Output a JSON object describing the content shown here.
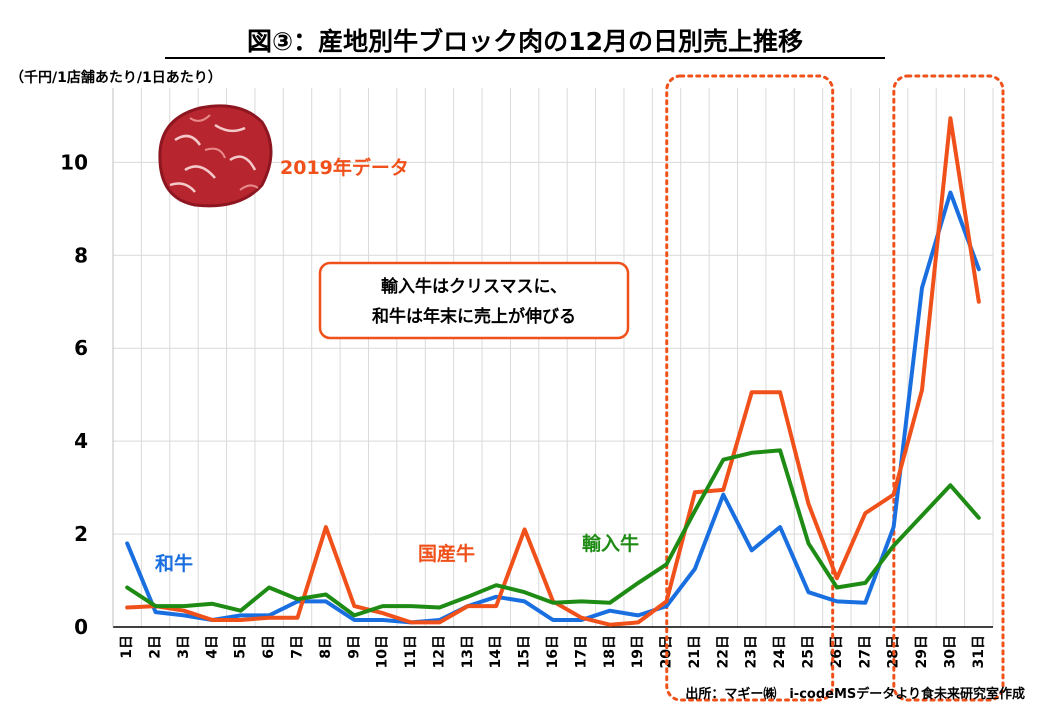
{
  "chart_data": {
    "type": "line",
    "title": "図③：産地別牛ブロック肉の12月の日別売上推移",
    "unit_label": "（千円/1店舗あたり/1日あたり）",
    "subtitle": "2019年データ",
    "annotation": [
      "輸入牛はクリスマスに、",
      "和牛は年末に売上が伸びる"
    ],
    "source": "出所：マギー㈱　i-codeMSデータより食未来研究室作成",
    "ylim": [
      0,
      11.6
    ],
    "yticks": [
      0,
      2,
      4,
      6,
      8,
      10
    ],
    "categories": [
      "1日",
      "2日",
      "3日",
      "4日",
      "5日",
      "6日",
      "7日",
      "8日",
      "9日",
      "10日",
      "11日",
      "12日",
      "13日",
      "14日",
      "15日",
      "16日",
      "17日",
      "18日",
      "19日",
      "20日",
      "21日",
      "22日",
      "23日",
      "24日",
      "25日",
      "26日",
      "27日",
      "28日",
      "29日",
      "30日",
      "31日"
    ],
    "highlight_ranges": [
      [
        21,
        25
      ],
      [
        29,
        31
      ]
    ],
    "series": [
      {
        "name": "和牛",
        "color": "#1a6fe0",
        "values": [
          1.8,
          0.32,
          0.25,
          0.15,
          0.25,
          0.25,
          0.55,
          0.55,
          0.15,
          0.15,
          0.1,
          0.15,
          0.45,
          0.65,
          0.55,
          0.15,
          0.15,
          0.35,
          0.25,
          0.45,
          1.25,
          2.85,
          1.65,
          2.15,
          0.75,
          0.55,
          0.52,
          2.15,
          7.3,
          9.35,
          7.7
        ]
      },
      {
        "name": "国産牛",
        "color": "#f0501a",
        "values": [
          0.42,
          0.45,
          0.35,
          0.15,
          0.15,
          0.2,
          0.2,
          2.15,
          0.45,
          0.3,
          0.1,
          0.1,
          0.45,
          0.45,
          2.1,
          0.55,
          0.2,
          0.05,
          0.1,
          0.55,
          2.9,
          2.95,
          5.05,
          5.05,
          2.65,
          1.05,
          2.45,
          2.85,
          5.1,
          10.95,
          7.0
        ]
      },
      {
        "name": "輸入牛",
        "color": "#1e8c14",
        "values": [
          0.85,
          0.45,
          0.45,
          0.5,
          0.35,
          0.85,
          0.6,
          0.7,
          0.25,
          0.45,
          0.45,
          0.42,
          0.65,
          0.9,
          0.75,
          0.52,
          0.55,
          0.52,
          0.95,
          1.35,
          2.5,
          3.6,
          3.75,
          3.8,
          1.8,
          0.85,
          0.95,
          1.75,
          2.4,
          3.05,
          2.35
        ]
      }
    ],
    "legend_placement": "inline labels near lines"
  }
}
